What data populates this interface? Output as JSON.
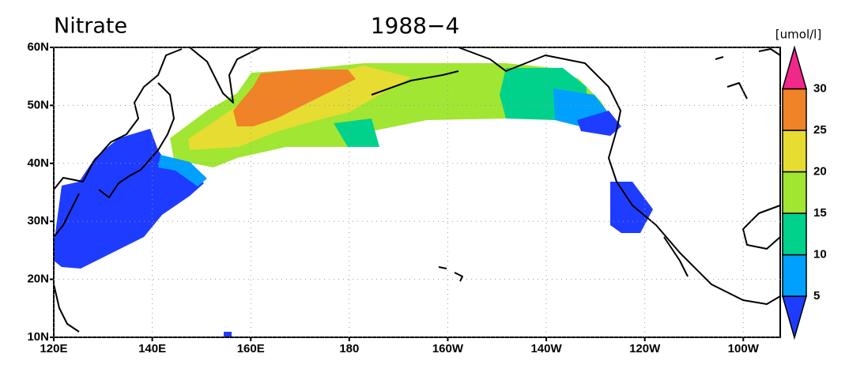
{
  "title": "Nitrate",
  "date": "1988−4",
  "units": "[umol/l]",
  "latlim": [
    10,
    60
  ],
  "lonlim": [
    120,
    267.5
  ],
  "lat_ticks": [
    {
      "value": 60,
      "label": "60N"
    },
    {
      "value": 50,
      "label": "50N"
    },
    {
      "value": 40,
      "label": "40N"
    },
    {
      "value": 30,
      "label": "30N"
    },
    {
      "value": 20,
      "label": "20N"
    },
    {
      "value": 10,
      "label": "10N"
    }
  ],
  "lon_ticks": [
    {
      "value": 120,
      "label": "120E"
    },
    {
      "value": 140,
      "label": "140E"
    },
    {
      "value": 160,
      "label": "160E"
    },
    {
      "value": 180,
      "label": "180"
    },
    {
      "value": 200,
      "label": "160W"
    },
    {
      "value": 220,
      "label": "140W"
    },
    {
      "value": 240,
      "label": "120W"
    },
    {
      "value": 260,
      "label": "100W"
    }
  ],
  "colorbar": {
    "levels": [
      5,
      10,
      15,
      20,
      25,
      30
    ],
    "colors": [
      "#1e3cff",
      "#00a0ff",
      "#00d28c",
      "#a0e632",
      "#e6dc32",
      "#f08228",
      "#f0288c"
    ]
  }
}
